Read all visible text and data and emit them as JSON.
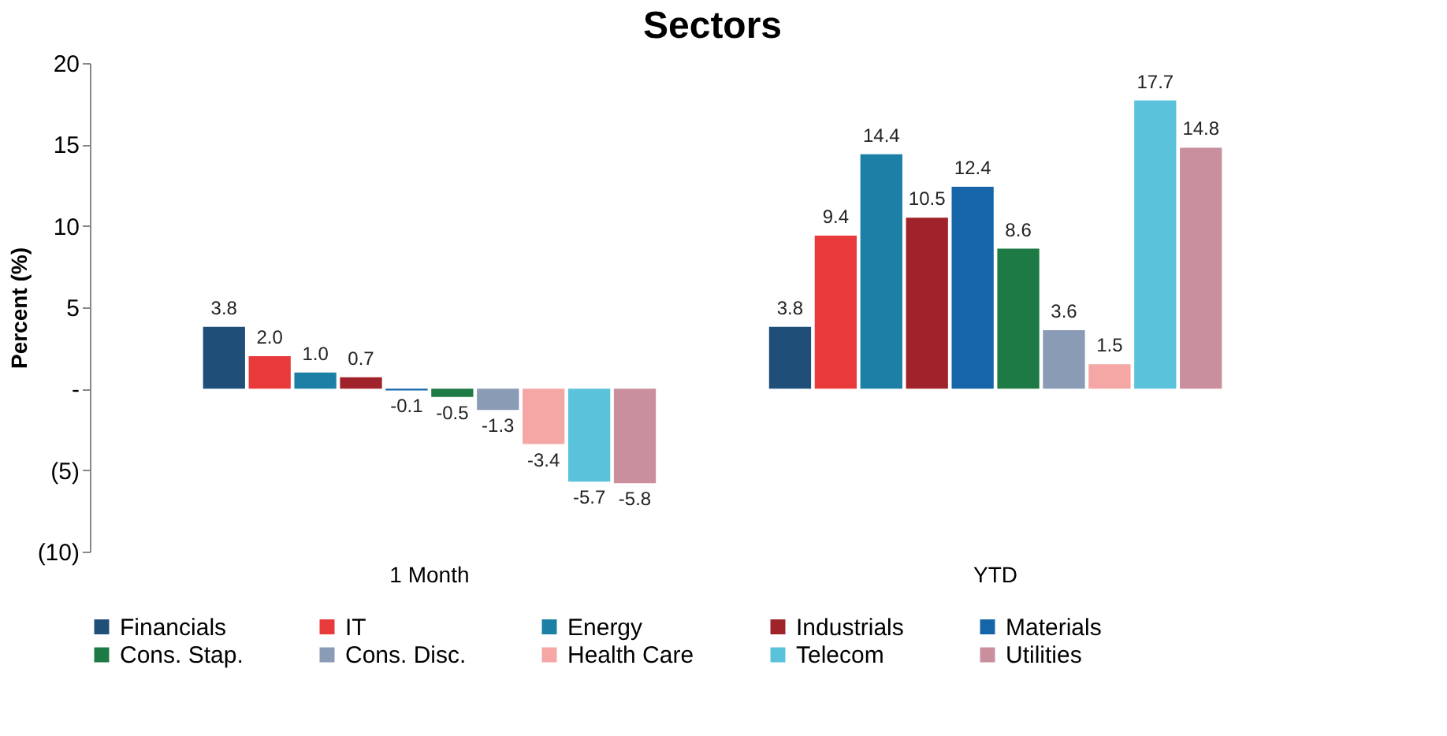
{
  "chart_data": {
    "type": "bar",
    "title": "Sectors",
    "ylabel": "Percent (%)",
    "categories": [
      "1 Month",
      "YTD"
    ],
    "series": [
      {
        "name": "Financials",
        "color": "#1f4e79",
        "values": [
          3.8,
          3.8
        ],
        "value_labels": [
          "3.8",
          "3.8"
        ]
      },
      {
        "name": "IT",
        "color": "#e8393b",
        "values": [
          2,
          9.4
        ],
        "value_labels": [
          "2.0",
          "9.4"
        ]
      },
      {
        "name": "Energy",
        "color": "#1b7fa6",
        "values": [
          1,
          14.4
        ],
        "value_labels": [
          "1.0",
          "14.4"
        ]
      },
      {
        "name": "Industrials",
        "color": "#a0232b",
        "values": [
          0.7,
          10.5
        ],
        "value_labels": [
          "0.7",
          "10.5"
        ]
      },
      {
        "name": "Materials",
        "color": "#1565a8",
        "values": [
          -0.1,
          12.4
        ],
        "value_labels": [
          "-0.1",
          "12.4"
        ]
      },
      {
        "name": "Cons. Stap.",
        "color": "#1e7a45",
        "values": [
          -0.5,
          8.6
        ],
        "value_labels": [
          "-0.5",
          "8.6"
        ]
      },
      {
        "name": "Cons. Disc.",
        "color": "#8a9bb5",
        "values": [
          -1.3,
          3.6
        ],
        "value_labels": [
          "-1.3",
          "3.6"
        ]
      },
      {
        "name": "Health Care",
        "color": "#f4a7a5",
        "values": [
          -3.4,
          1.5
        ],
        "value_labels": [
          "-3.4",
          "1.5"
        ]
      },
      {
        "name": "Telecom",
        "color": "#5bc2dc",
        "values": [
          -5.7,
          17.7
        ],
        "value_labels": [
          "-5.7",
          "17.7"
        ]
      },
      {
        "name": "Utilities",
        "color": "#c98f9c",
        "values": [
          -5.8,
          14.8
        ],
        "value_labels": [
          "-5.8",
          "14.8"
        ]
      }
    ],
    "ylim": [
      -10,
      20
    ],
    "yticks": [
      {
        "value": -10,
        "label": "(10)"
      },
      {
        "value": -5,
        "label": "(5)"
      },
      {
        "value": 0,
        "label": "-"
      },
      5,
      10,
      15,
      20
    ],
    "grid": false,
    "legend": "bottom"
  }
}
